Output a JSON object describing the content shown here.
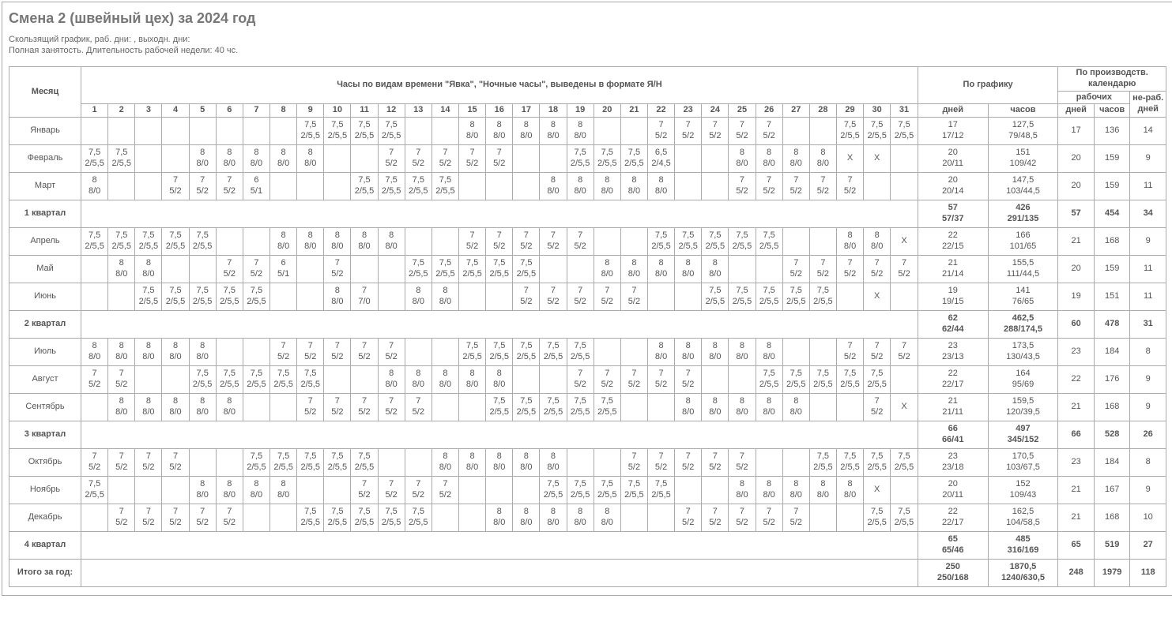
{
  "title": "Смена 2 (швейный цех) за 2024 год",
  "subtitle1": "Скользящий график, раб. дни: , выходн. дни:",
  "subtitle2": "Полная занятость. Длительность рабочей недели: 40 чс.",
  "headers": {
    "month": "Месяц",
    "hours_block": "Часы по видам времени \"Явка\", \"Ночные часы\", выведены в формате Я/Н",
    "schedule": "По графику",
    "prod_cal": "По производств. календарю",
    "sched_days": "дней",
    "sched_hours": "часов",
    "prod_work": "рабочих",
    "prod_nonwork": "не-раб. дней",
    "prod_days": "дней",
    "prod_hours": "часов",
    "days": [
      "1",
      "2",
      "3",
      "4",
      "5",
      "6",
      "7",
      "8",
      "9",
      "10",
      "11",
      "12",
      "13",
      "14",
      "15",
      "16",
      "17",
      "18",
      "19",
      "20",
      "21",
      "22",
      "23",
      "24",
      "25",
      "26",
      "27",
      "28",
      "29",
      "30",
      "31"
    ]
  },
  "rows": [
    {
      "label": "Январь",
      "bold": false,
      "cells": [
        "",
        "",
        "",
        "",
        "",
        "",
        "",
        "",
        "7,5\n2/5,5",
        "7,5\n2/5,5",
        "7,5\n2/5,5",
        "7,5\n2/5,5",
        "",
        "",
        "8\n8/0",
        "8\n8/0",
        "8\n8/0",
        "8\n8/0",
        "8\n8/0",
        "",
        "",
        "7\n5/2",
        "7\n5/2",
        "7\n5/2",
        "7\n5/2",
        "7\n5/2",
        "",
        "",
        "7,5\n2/5,5",
        "7,5\n2/5,5",
        "7,5\n2/5,5"
      ],
      "sd": "17\n17/12",
      "sh": "127,5\n79/48,5",
      "pd": "17",
      "ph": "136",
      "pn": "14"
    },
    {
      "label": "Февраль",
      "bold": false,
      "cells": [
        "7,5\n2/5,5",
        "7,5\n2/5,5",
        "",
        "",
        "8\n8/0",
        "8\n8/0",
        "8\n8/0",
        "8\n8/0",
        "8\n8/0",
        "",
        "",
        "7\n5/2",
        "7\n5/2",
        "7\n5/2",
        "7\n5/2",
        "7\n5/2",
        "",
        "",
        "7,5\n2/5,5",
        "7,5\n2/5,5",
        "7,5\n2/5,5",
        "6,5\n2/4,5",
        "",
        "",
        "8\n8/0",
        "8\n8/0",
        "8\n8/0",
        "8\n8/0",
        "Х",
        "Х",
        ""
      ],
      "sd": "20\n20/11",
      "sh": "151\n109/42",
      "pd": "20",
      "ph": "159",
      "pn": "9"
    },
    {
      "label": "Март",
      "bold": false,
      "cells": [
        "8\n8/0",
        "",
        "",
        "7\n5/2",
        "7\n5/2",
        "7\n5/2",
        "6\n5/1",
        "",
        "",
        "",
        "7,5\n2/5,5",
        "7,5\n2/5,5",
        "7,5\n2/5,5",
        "7,5\n2/5,5",
        "",
        "",
        "",
        "8\n8/0",
        "8\n8/0",
        "8\n8/0",
        "8\n8/0",
        "8\n8/0",
        "",
        "",
        "7\n5/2",
        "7\n5/2",
        "7\n5/2",
        "7\n5/2",
        "7\n5/2",
        "",
        ""
      ],
      "sd": "20\n20/14",
      "sh": "147,5\n103/44,5",
      "pd": "20",
      "ph": "159",
      "pn": "11"
    },
    {
      "label": "1 квартал",
      "bold": true,
      "cells": [
        "",
        "",
        "",
        "",
        "",
        "",
        "",
        "",
        "",
        "",
        "",
        "",
        "",
        "",
        "",
        "",
        "",
        "",
        "",
        "",
        "",
        "",
        "",
        "",
        "",
        "",
        "",
        "",
        "",
        "",
        ""
      ],
      "sd": "57\n57/37",
      "sh": "426\n291/135",
      "pd": "57",
      "ph": "454",
      "pn": "34"
    },
    {
      "label": "Апрель",
      "bold": false,
      "cells": [
        "7,5\n2/5,5",
        "7,5\n2/5,5",
        "7,5\n2/5,5",
        "7,5\n2/5,5",
        "7,5\n2/5,5",
        "",
        "",
        "8\n8/0",
        "8\n8/0",
        "8\n8/0",
        "8\n8/0",
        "8\n8/0",
        "",
        "",
        "7\n5/2",
        "7\n5/2",
        "7\n5/2",
        "7\n5/2",
        "7\n5/2",
        "",
        "",
        "7,5\n2/5,5",
        "7,5\n2/5,5",
        "7,5\n2/5,5",
        "7,5\n2/5,5",
        "7,5\n2/5,5",
        "",
        "",
        "8\n8/0",
        "8\n8/0",
        "Х"
      ],
      "sd": "22\n22/15",
      "sh": "166\n101/65",
      "pd": "21",
      "ph": "168",
      "pn": "9"
    },
    {
      "label": "Май",
      "bold": false,
      "cells": [
        "",
        "8\n8/0",
        "8\n8/0",
        "",
        "",
        "7\n5/2",
        "7\n5/2",
        "6\n5/1",
        "",
        "7\n5/2",
        "",
        "",
        "7,5\n2/5,5",
        "7,5\n2/5,5",
        "7,5\n2/5,5",
        "7,5\n2/5,5",
        "7,5\n2/5,5",
        "",
        "",
        "8\n8/0",
        "8\n8/0",
        "8\n8/0",
        "8\n8/0",
        "8\n8/0",
        "",
        "",
        "7\n5/2",
        "7\n5/2",
        "7\n5/2",
        "7\n5/2",
        "7\n5/2"
      ],
      "sd": "21\n21/14",
      "sh": "155,5\n111/44,5",
      "pd": "20",
      "ph": "159",
      "pn": "11"
    },
    {
      "label": "Июнь",
      "bold": false,
      "cells": [
        "",
        "",
        "7,5\n2/5,5",
        "7,5\n2/5,5",
        "7,5\n2/5,5",
        "7,5\n2/5,5",
        "7,5\n2/5,5",
        "",
        "",
        "8\n8/0",
        "7\n7/0",
        "",
        "8\n8/0",
        "8\n8/0",
        "",
        "",
        "7\n5/2",
        "7\n5/2",
        "7\n5/2",
        "7\n5/2",
        "7\n5/2",
        "",
        "",
        "7,5\n2/5,5",
        "7,5\n2/5,5",
        "7,5\n2/5,5",
        "7,5\n2/5,5",
        "7,5\n2/5,5",
        "",
        "Х",
        ""
      ],
      "sd": "19\n19/15",
      "sh": "141\n76/65",
      "pd": "19",
      "ph": "151",
      "pn": "11"
    },
    {
      "label": "2 квартал",
      "bold": true,
      "cells": [
        "",
        "",
        "",
        "",
        "",
        "",
        "",
        "",
        "",
        "",
        "",
        "",
        "",
        "",
        "",
        "",
        "",
        "",
        "",
        "",
        "",
        "",
        "",
        "",
        "",
        "",
        "",
        "",
        "",
        "",
        ""
      ],
      "sd": "62\n62/44",
      "sh": "462,5\n288/174,5",
      "pd": "60",
      "ph": "478",
      "pn": "31"
    },
    {
      "label": "Июль",
      "bold": false,
      "cells": [
        "8\n8/0",
        "8\n8/0",
        "8\n8/0",
        "8\n8/0",
        "8\n8/0",
        "",
        "",
        "7\n5/2",
        "7\n5/2",
        "7\n5/2",
        "7\n5/2",
        "7\n5/2",
        "",
        "",
        "7,5\n2/5,5",
        "7,5\n2/5,5",
        "7,5\n2/5,5",
        "7,5\n2/5,5",
        "7,5\n2/5,5",
        "",
        "",
        "8\n8/0",
        "8\n8/0",
        "8\n8/0",
        "8\n8/0",
        "8\n8/0",
        "",
        "",
        "7\n5/2",
        "7\n5/2",
        "7\n5/2"
      ],
      "sd": "23\n23/13",
      "sh": "173,5\n130/43,5",
      "pd": "23",
      "ph": "184",
      "pn": "8"
    },
    {
      "label": "Август",
      "bold": false,
      "cells": [
        "7\n5/2",
        "7\n5/2",
        "",
        "",
        "7,5\n2/5,5",
        "7,5\n2/5,5",
        "7,5\n2/5,5",
        "7,5\n2/5,5",
        "7,5\n2/5,5",
        "",
        "",
        "8\n8/0",
        "8\n8/0",
        "8\n8/0",
        "8\n8/0",
        "8\n8/0",
        "",
        "",
        "7\n5/2",
        "7\n5/2",
        "7\n5/2",
        "7\n5/2",
        "7\n5/2",
        "",
        "",
        "7,5\n2/5,5",
        "7,5\n2/5,5",
        "7,5\n2/5,5",
        "7,5\n2/5,5",
        "7,5\n2/5,5",
        ""
      ],
      "sd": "22\n22/17",
      "sh": "164\n95/69",
      "pd": "22",
      "ph": "176",
      "pn": "9"
    },
    {
      "label": "Сентябрь",
      "bold": false,
      "cells": [
        "",
        "8\n8/0",
        "8\n8/0",
        "8\n8/0",
        "8\n8/0",
        "8\n8/0",
        "",
        "",
        "7\n5/2",
        "7\n5/2",
        "7\n5/2",
        "7\n5/2",
        "7\n5/2",
        "",
        "",
        "7,5\n2/5,5",
        "7,5\n2/5,5",
        "7,5\n2/5,5",
        "7,5\n2/5,5",
        "7,5\n2/5,5",
        "",
        "",
        "8\n8/0",
        "8\n8/0",
        "8\n8/0",
        "8\n8/0",
        "8\n8/0",
        "",
        "",
        "7\n5/2",
        "Х"
      ],
      "sd": "21\n21/11",
      "sh": "159,5\n120/39,5",
      "pd": "21",
      "ph": "168",
      "pn": "9"
    },
    {
      "label": "3 квартал",
      "bold": true,
      "cells": [
        "",
        "",
        "",
        "",
        "",
        "",
        "",
        "",
        "",
        "",
        "",
        "",
        "",
        "",
        "",
        "",
        "",
        "",
        "",
        "",
        "",
        "",
        "",
        "",
        "",
        "",
        "",
        "",
        "",
        "",
        ""
      ],
      "sd": "66\n66/41",
      "sh": "497\n345/152",
      "pd": "66",
      "ph": "528",
      "pn": "26"
    },
    {
      "label": "Октябрь",
      "bold": false,
      "cells": [
        "7\n5/2",
        "7\n5/2",
        "7\n5/2",
        "7\n5/2",
        "",
        "",
        "7,5\n2/5,5",
        "7,5\n2/5,5",
        "7,5\n2/5,5",
        "7,5\n2/5,5",
        "7,5\n2/5,5",
        "",
        "",
        "8\n8/0",
        "8\n8/0",
        "8\n8/0",
        "8\n8/0",
        "8\n8/0",
        "",
        "",
        "7\n5/2",
        "7\n5/2",
        "7\n5/2",
        "7\n5/2",
        "7\n5/2",
        "",
        "",
        "7,5\n2/5,5",
        "7,5\n2/5,5",
        "7,5\n2/5,5",
        "7,5\n2/5,5"
      ],
      "sd": "23\n23/18",
      "sh": "170,5\n103/67,5",
      "pd": "23",
      "ph": "184",
      "pn": "8"
    },
    {
      "label": "Ноябрь",
      "bold": false,
      "cells": [
        "7,5\n2/5,5",
        "",
        "",
        "",
        "8\n8/0",
        "8\n8/0",
        "8\n8/0",
        "8\n8/0",
        "",
        "",
        "7\n5/2",
        "7\n5/2",
        "7\n5/2",
        "7\n5/2",
        "",
        "",
        "",
        "7,5\n2/5,5",
        "7,5\n2/5,5",
        "7,5\n2/5,5",
        "7,5\n2/5,5",
        "7,5\n2/5,5",
        "",
        "",
        "8\n8/0",
        "8\n8/0",
        "8\n8/0",
        "8\n8/0",
        "8\n8/0",
        "Х",
        ""
      ],
      "sd": "20\n20/11",
      "sh": "152\n109/43",
      "pd": "21",
      "ph": "167",
      "pn": "9"
    },
    {
      "label": "Декабрь",
      "bold": false,
      "cells": [
        "",
        "7\n5/2",
        "7\n5/2",
        "7\n5/2",
        "7\n5/2",
        "7\n5/2",
        "",
        "",
        "7,5\n2/5,5",
        "7,5\n2/5,5",
        "7,5\n2/5,5",
        "7,5\n2/5,5",
        "7,5\n2/5,5",
        "",
        "",
        "8\n8/0",
        "8\n8/0",
        "8\n8/0",
        "8\n8/0",
        "8\n8/0",
        "",
        "",
        "7\n5/2",
        "7\n5/2",
        "7\n5/2",
        "7\n5/2",
        "7\n5/2",
        "",
        "",
        "7,5\n2/5,5",
        "7,5\n2/5,5"
      ],
      "sd": "22\n22/17",
      "sh": "162,5\n104/58,5",
      "pd": "21",
      "ph": "168",
      "pn": "10"
    },
    {
      "label": "4 квартал",
      "bold": true,
      "cells": [
        "",
        "",
        "",
        "",
        "",
        "",
        "",
        "",
        "",
        "",
        "",
        "",
        "",
        "",
        "",
        "",
        "",
        "",
        "",
        "",
        "",
        "",
        "",
        "",
        "",
        "",
        "",
        "",
        "",
        "",
        ""
      ],
      "sd": "65\n65/46",
      "sh": "485\n316/169",
      "pd": "65",
      "ph": "519",
      "pn": "27"
    },
    {
      "label": "Итого за год:",
      "bold": true,
      "cells": [
        "",
        "",
        "",
        "",
        "",
        "",
        "",
        "",
        "",
        "",
        "",
        "",
        "",
        "",
        "",
        "",
        "",
        "",
        "",
        "",
        "",
        "",
        "",
        "",
        "",
        "",
        "",
        "",
        "",
        "",
        ""
      ],
      "sd": "250\n250/168",
      "sh": "1870,5\n1240/630,5",
      "pd": "248",
      "ph": "1979",
      "pn": "118"
    }
  ]
}
